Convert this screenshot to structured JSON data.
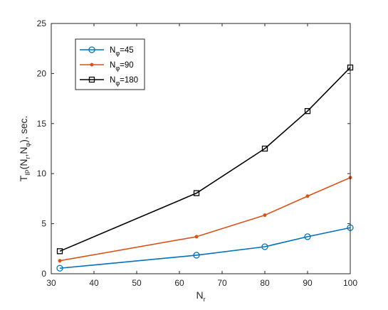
{
  "chart_data": {
    "type": "line",
    "x": [
      32,
      64,
      80,
      90,
      100
    ],
    "xlim": [
      30,
      100
    ],
    "ylim": [
      0,
      25
    ],
    "xticks": [
      30,
      40,
      50,
      60,
      70,
      80,
      90,
      100
    ],
    "yticks": [
      0,
      5,
      10,
      15,
      20,
      25
    ],
    "xlabel": {
      "main": "N",
      "sub": "r"
    },
    "ylabel": [
      {
        "text": "T",
        "sub": false
      },
      {
        "text": "IP",
        "sub": true
      },
      {
        "text": "(N",
        "sub": false
      },
      {
        "text": "r",
        "sub": true
      },
      {
        "text": ",N",
        "sub": false
      },
      {
        "text": "φ",
        "sub": true
      },
      {
        "text": "), sec.",
        "sub": false
      }
    ],
    "grid": false,
    "legend_position": "top-left",
    "series": [
      {
        "name": "N",
        "name_sub": "φ",
        "name_suffix": "=45",
        "values": [
          0.55,
          1.85,
          2.7,
          3.7,
          4.6
        ],
        "color": "#0072BD",
        "marker": "circle"
      },
      {
        "name": "N",
        "name_sub": "φ",
        "name_suffix": "=90",
        "values": [
          1.3,
          3.7,
          5.85,
          7.75,
          9.6
        ],
        "color": "#D95319",
        "marker": "dot"
      },
      {
        "name": "N",
        "name_sub": "φ",
        "name_suffix": "=180",
        "values": [
          2.25,
          8.05,
          12.5,
          16.25,
          20.6
        ],
        "color": "#000000",
        "marker": "square"
      }
    ]
  }
}
